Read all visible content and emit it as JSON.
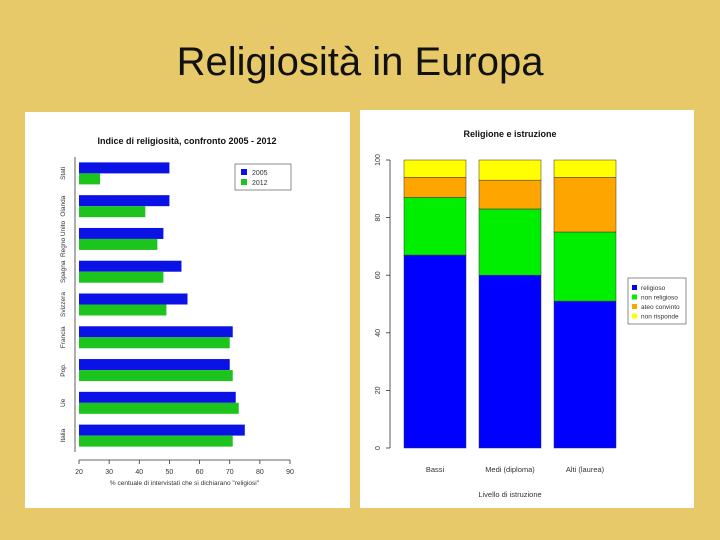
{
  "slide": {
    "title": "Religiosità in Europa"
  },
  "chart_data": [
    {
      "type": "bar",
      "orientation": "horizontal",
      "title": "Indice di religiosità, confronto 2005 - 2012",
      "xlabel": "% centuale di intervistati che si dichiarano \"religiosi\"",
      "ylabel": "",
      "xlim": [
        20,
        90
      ],
      "xticks": [
        "20",
        "30",
        "40",
        "50",
        "60",
        "70",
        "80",
        "90"
      ],
      "categories": [
        "Italia",
        "Ue",
        "Pop.",
        "Francia",
        "Svizzera",
        "Spagna",
        "Regno Unito",
        "Olanda",
        "Stati"
      ],
      "series": [
        {
          "name": "2005",
          "color": "#0b12e6",
          "values": [
            75,
            72,
            70,
            71,
            56,
            54,
            48,
            50,
            50
          ]
        },
        {
          "name": "2012",
          "color": "#1ec41e",
          "values": [
            71,
            73,
            71,
            70,
            49,
            48,
            46,
            42,
            27
          ]
        }
      ],
      "legend": "top-right"
    },
    {
      "type": "bar",
      "stacked": true,
      "title": "Religione e istruzione",
      "xlabel": "Livello di istruzione",
      "ylabel": "",
      "ylim": [
        0,
        100
      ],
      "yticks": [
        "0",
        "20",
        "40",
        "60",
        "80",
        "100"
      ],
      "categories": [
        "Bassi",
        "Medi (diploma)",
        "Alti (laurea)"
      ],
      "series": [
        {
          "name": "religioso",
          "color": "#0000ff",
          "values": [
            67,
            60,
            51
          ]
        },
        {
          "name": "non religioso",
          "color": "#00ee00",
          "values": [
            20,
            23,
            24
          ]
        },
        {
          "name": "ateo convinto",
          "color": "#ffa500",
          "values": [
            7,
            10,
            19
          ]
        },
        {
          "name": "non risponde",
          "color": "#ffff00",
          "values": [
            6,
            7,
            6
          ]
        }
      ],
      "legend": "right"
    }
  ]
}
